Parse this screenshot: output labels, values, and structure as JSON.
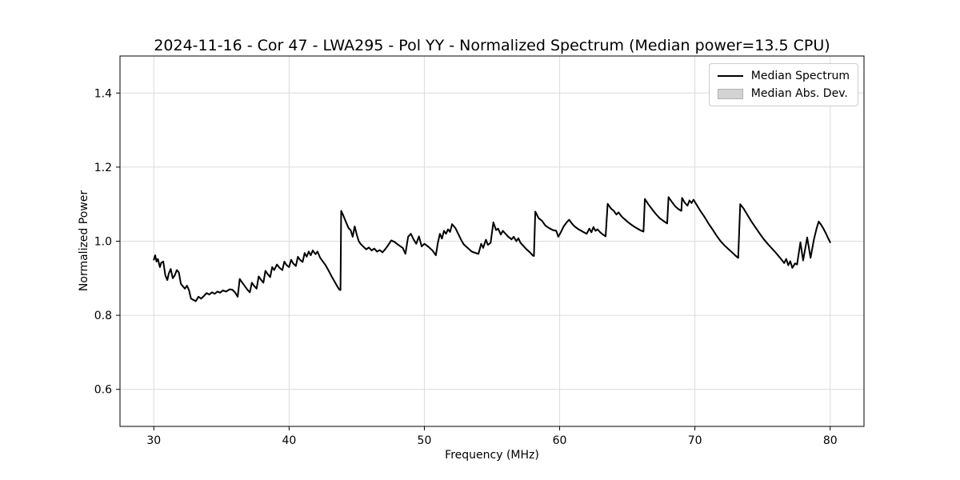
{
  "figure": {
    "background_color": "#ffffff",
    "grid_color": "#dcdcdc",
    "spine_color": "#000000",
    "tick_label_color": "#000000"
  },
  "legend": {
    "position": "upper right",
    "items": [
      {
        "label": "Median Spectrum",
        "sample": "line",
        "color": "#000000"
      },
      {
        "label": "Median Abs. Dev.",
        "sample": "patch",
        "fill_color": "#d3d3d3",
        "edge_color": "#b0b0b0"
      }
    ]
  },
  "chart_data": {
    "type": "line",
    "title": "2024-11-16 - Cor 47 - LWA295 - Pol YY - Normalized Spectrum (Median power=13.5 CPU)",
    "xlabel": "Frequency (MHz)",
    "ylabel": "Normalized Power",
    "xlim": [
      27.5,
      82.5
    ],
    "ylim": [
      0.5,
      1.5
    ],
    "xticks": [
      30,
      40,
      50,
      60,
      70,
      80
    ],
    "xtick_labels": [
      "30",
      "40",
      "50",
      "60",
      "70",
      "80"
    ],
    "yticks": [
      0.6,
      0.8,
      1.0,
      1.2,
      1.4
    ],
    "ytick_labels": [
      "0.6",
      "0.8",
      "1.0",
      "1.2",
      "1.4"
    ],
    "grid": true,
    "legend_position": "upper right",
    "series": [
      {
        "name": "Median Spectrum",
        "color": "#000000",
        "line_width": 2,
        "x": [
          30.0,
          30.1,
          30.2,
          30.3,
          30.45,
          30.55,
          30.7,
          30.85,
          31.0,
          31.1,
          31.25,
          31.4,
          31.55,
          31.7,
          31.85,
          32.0,
          32.15,
          32.3,
          32.45,
          32.6,
          32.75,
          32.9,
          33.1,
          33.3,
          33.5,
          33.7,
          33.9,
          34.1,
          34.3,
          34.5,
          34.7,
          34.9,
          35.1,
          35.35,
          35.6,
          35.8,
          36.0,
          36.2,
          36.35,
          36.5,
          36.7,
          36.9,
          37.1,
          37.25,
          37.4,
          37.6,
          37.75,
          37.9,
          38.1,
          38.25,
          38.4,
          38.6,
          38.75,
          38.9,
          39.1,
          39.3,
          39.5,
          39.65,
          39.8,
          40.0,
          40.15,
          40.3,
          40.5,
          40.65,
          40.8,
          41.0,
          41.15,
          41.3,
          41.45,
          41.6,
          41.75,
          41.95,
          42.1,
          42.3,
          42.5,
          42.7,
          42.9,
          43.1,
          43.3,
          43.5,
          43.7,
          43.8,
          43.85,
          44.0,
          44.2,
          44.4,
          44.55,
          44.7,
          44.85,
          45.0,
          45.15,
          45.3,
          45.5,
          45.7,
          45.9,
          46.1,
          46.3,
          46.5,
          46.7,
          46.9,
          47.1,
          47.3,
          47.55,
          47.8,
          48.0,
          48.2,
          48.4,
          48.6,
          48.8,
          49.0,
          49.2,
          49.4,
          49.6,
          49.8,
          50.0,
          50.3,
          50.6,
          50.85,
          51.0,
          51.15,
          51.3,
          51.45,
          51.6,
          51.75,
          51.9,
          52.05,
          52.3,
          52.5,
          52.7,
          52.9,
          53.2,
          53.5,
          53.8,
          54.0,
          54.2,
          54.35,
          54.55,
          54.7,
          54.9,
          55.1,
          55.3,
          55.45,
          55.65,
          55.8,
          56.0,
          56.2,
          56.45,
          56.6,
          56.8,
          56.95,
          57.1,
          57.3,
          57.55,
          57.8,
          58.0,
          58.1,
          58.2,
          58.45,
          58.7,
          58.95,
          59.2,
          59.5,
          59.75,
          59.9,
          60.1,
          60.3,
          60.5,
          60.7,
          60.9,
          61.1,
          61.4,
          61.7,
          62.0,
          62.2,
          62.35,
          62.5,
          62.65,
          62.8,
          63.0,
          63.2,
          63.4,
          63.55,
          63.8,
          64.0,
          64.2,
          64.35,
          64.6,
          64.85,
          65.1,
          65.4,
          65.7,
          66.0,
          66.2,
          66.3,
          66.55,
          66.8,
          67.1,
          67.4,
          67.7,
          67.95,
          68.05,
          68.3,
          68.55,
          68.8,
          69.0,
          69.05,
          69.25,
          69.45,
          69.6,
          69.75,
          69.9,
          70.1,
          70.4,
          70.7,
          71.0,
          71.3,
          71.6,
          71.9,
          72.2,
          72.5,
          72.8,
          73.0,
          73.2,
          73.35,
          73.6,
          73.9,
          74.2,
          74.5,
          74.8,
          75.1,
          75.4,
          75.7,
          76.0,
          76.3,
          76.6,
          76.75,
          76.9,
          77.05,
          77.2,
          77.4,
          77.55,
          77.8,
          78.0,
          78.3,
          78.55,
          78.8,
          79.0,
          79.15,
          79.3,
          79.5,
          79.7,
          79.85,
          80.0
        ],
        "y": [
          0.95,
          0.962,
          0.945,
          0.952,
          0.93,
          0.942,
          0.945,
          0.908,
          0.895,
          0.912,
          0.925,
          0.9,
          0.908,
          0.922,
          0.916,
          0.885,
          0.878,
          0.872,
          0.88,
          0.868,
          0.845,
          0.842,
          0.838,
          0.85,
          0.845,
          0.852,
          0.86,
          0.856,
          0.862,
          0.858,
          0.864,
          0.861,
          0.867,
          0.864,
          0.87,
          0.869,
          0.862,
          0.85,
          0.898,
          0.89,
          0.88,
          0.87,
          0.862,
          0.888,
          0.88,
          0.872,
          0.905,
          0.897,
          0.888,
          0.92,
          0.912,
          0.903,
          0.93,
          0.922,
          0.937,
          0.928,
          0.922,
          0.945,
          0.936,
          0.93,
          0.95,
          0.94,
          0.933,
          0.958,
          0.95,
          0.944,
          0.968,
          0.958,
          0.972,
          0.962,
          0.975,
          0.965,
          0.972,
          0.955,
          0.945,
          0.935,
          0.922,
          0.908,
          0.895,
          0.882,
          0.87,
          0.868,
          1.082,
          1.07,
          1.052,
          1.035,
          1.03,
          1.012,
          1.04,
          1.018,
          1.0,
          0.992,
          0.985,
          0.978,
          0.983,
          0.975,
          0.98,
          0.972,
          0.976,
          0.97,
          0.978,
          0.988,
          1.002,
          0.998,
          0.992,
          0.987,
          0.982,
          0.966,
          1.012,
          1.02,
          1.005,
          0.993,
          1.013,
          0.986,
          0.993,
          0.985,
          0.975,
          0.962,
          0.996,
          1.02,
          1.007,
          1.028,
          1.02,
          1.032,
          1.025,
          1.046,
          1.035,
          1.02,
          1.005,
          0.992,
          0.982,
          0.972,
          0.968,
          0.966,
          0.993,
          0.982,
          1.004,
          0.99,
          0.996,
          1.051,
          1.03,
          1.034,
          1.018,
          1.028,
          1.02,
          1.012,
          1.005,
          1.012,
          1.0,
          1.008,
          0.996,
          0.988,
          0.978,
          0.97,
          0.962,
          0.96,
          1.08,
          1.062,
          1.055,
          1.042,
          1.036,
          1.03,
          1.028,
          1.012,
          1.025,
          1.04,
          1.05,
          1.058,
          1.048,
          1.04,
          1.032,
          1.026,
          1.02,
          1.034,
          1.024,
          1.038,
          1.028,
          1.032,
          1.024,
          1.018,
          1.013,
          1.101,
          1.088,
          1.082,
          1.072,
          1.078,
          1.066,
          1.058,
          1.05,
          1.042,
          1.035,
          1.029,
          1.026,
          1.114,
          1.1,
          1.088,
          1.074,
          1.062,
          1.054,
          1.048,
          1.119,
          1.106,
          1.094,
          1.086,
          1.082,
          1.117,
          1.104,
          1.096,
          1.11,
          1.103,
          1.112,
          1.1,
          1.082,
          1.066,
          1.048,
          1.032,
          1.015,
          1.0,
          0.988,
          0.978,
          0.968,
          0.961,
          0.955,
          1.1,
          1.088,
          1.07,
          1.052,
          1.036,
          1.02,
          1.005,
          0.992,
          0.98,
          0.968,
          0.955,
          0.941,
          0.952,
          0.935,
          0.946,
          0.928,
          0.94,
          0.937,
          0.997,
          0.948,
          1.01,
          0.955,
          1.005,
          1.035,
          1.053,
          1.046,
          1.034,
          1.02,
          1.008,
          0.997
        ]
      },
      {
        "name": "Median Abs. Dev.",
        "color": "#d3d3d3",
        "band_halfwidth": 0.003
      }
    ]
  }
}
